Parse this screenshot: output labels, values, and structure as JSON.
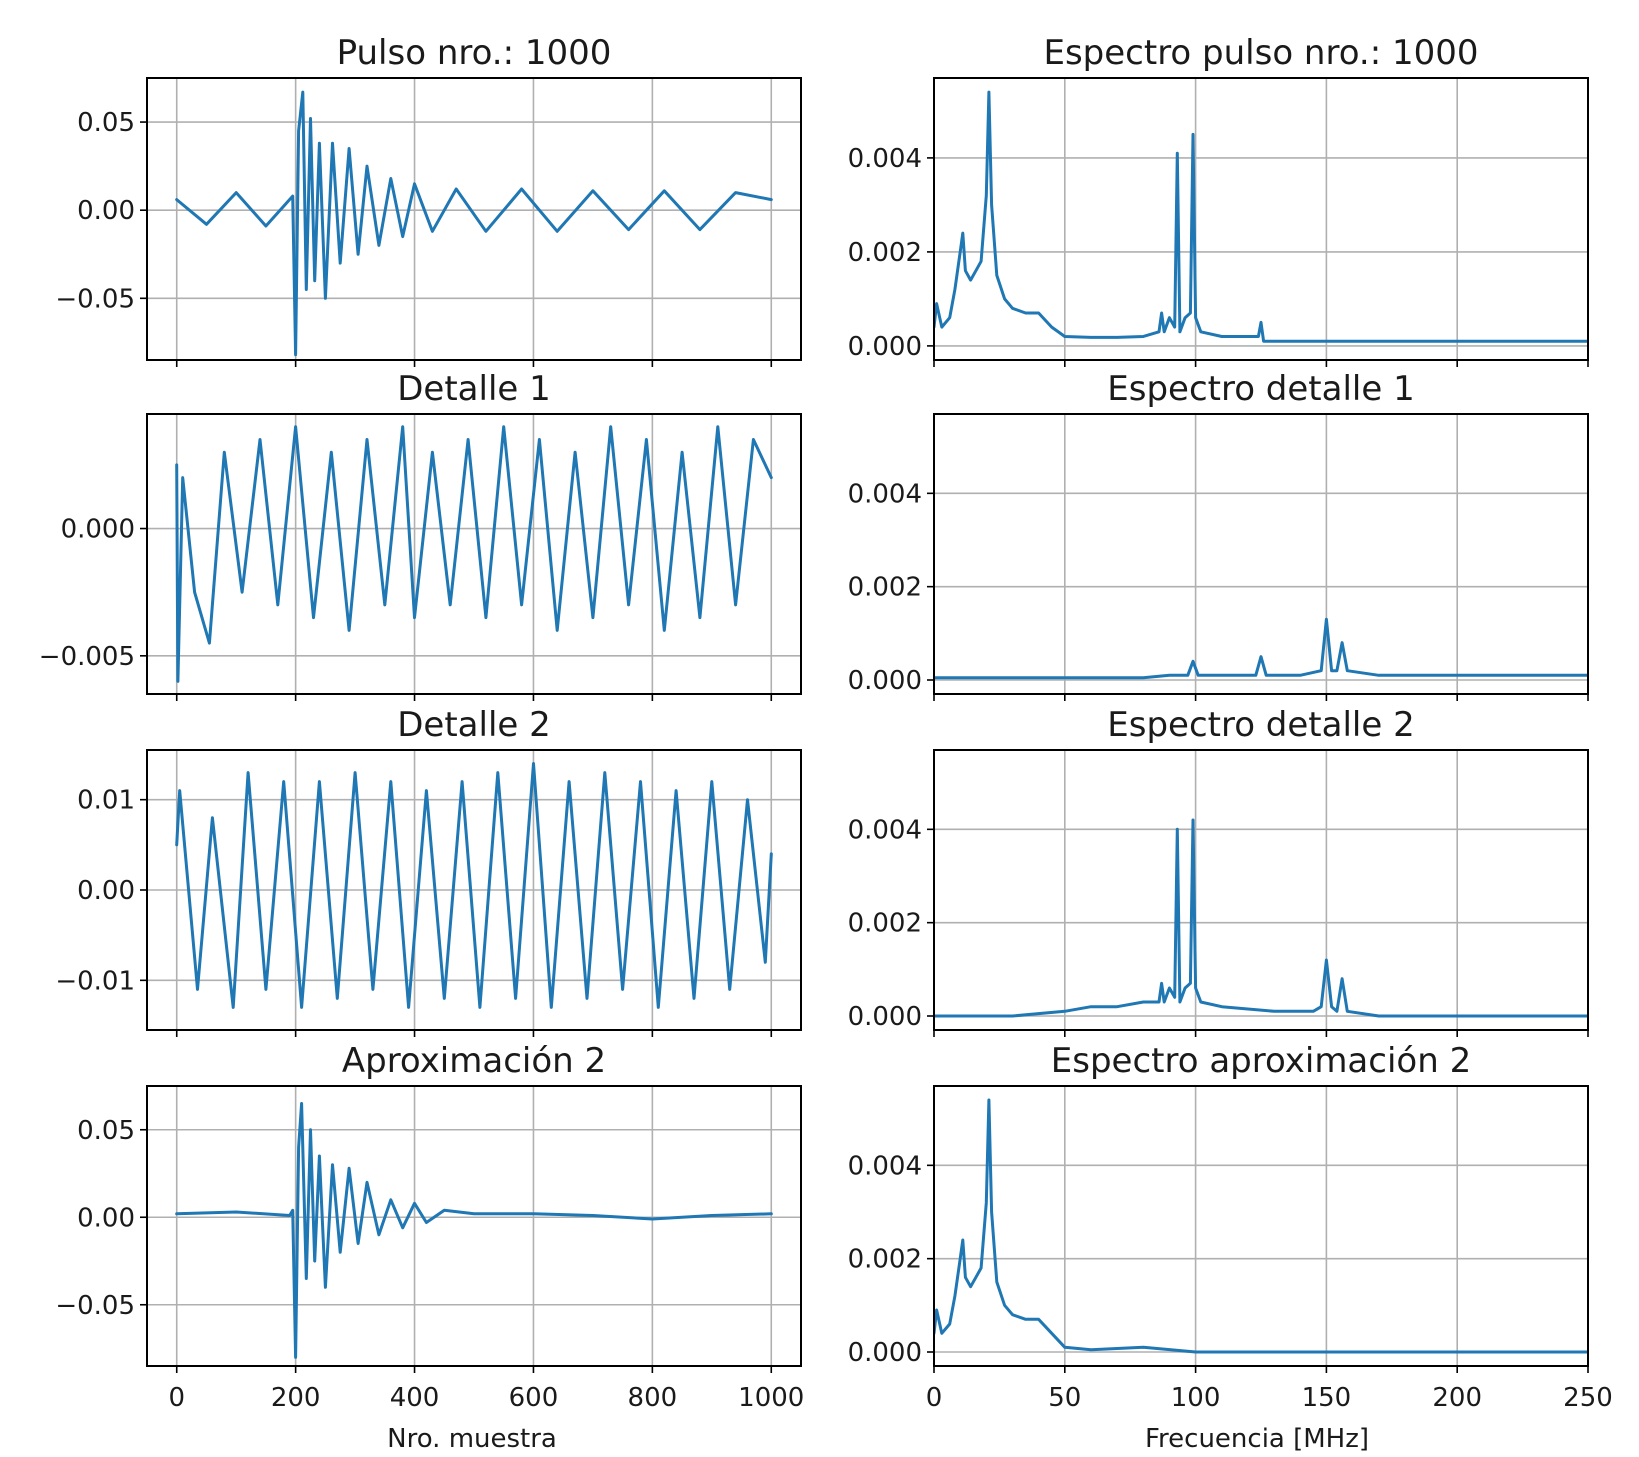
{
  "colors": {
    "series": "#1f77b4"
  },
  "x_labels": {
    "left": "Nro. muestra",
    "right": "Frecuencia [MHz]"
  },
  "chart_data": [
    {
      "type": "line",
      "title": "Pulso nro.: 1000",
      "column": "left",
      "xlim": [
        -50,
        1050
      ],
      "ylim": [
        -0.085,
        0.075
      ],
      "xticks": [
        0,
        200,
        400,
        600,
        800,
        1000
      ],
      "yticks": [
        -0.05,
        0.0,
        0.05
      ],
      "ytick_labels": [
        "−0.05",
        "0.00",
        "0.05"
      ],
      "series": [
        {
          "x": [
            0,
            50,
            100,
            150,
            195,
            200,
            205,
            212,
            218,
            225,
            232,
            240,
            250,
            262,
            275,
            290,
            305,
            320,
            340,
            360,
            380,
            400,
            430,
            470,
            520,
            580,
            640,
            700,
            760,
            820,
            880,
            940,
            1000
          ],
          "y": [
            0.006,
            -0.008,
            0.01,
            -0.009,
            0.008,
            -0.082,
            0.045,
            0.067,
            -0.045,
            0.052,
            -0.04,
            0.038,
            -0.05,
            0.038,
            -0.03,
            0.035,
            -0.025,
            0.025,
            -0.02,
            0.018,
            -0.015,
            0.015,
            -0.012,
            0.012,
            -0.012,
            0.012,
            -0.012,
            0.011,
            -0.011,
            0.011,
            -0.011,
            0.01,
            0.006
          ]
        }
      ]
    },
    {
      "type": "line",
      "title": "Espectro pulso nro.: 1000",
      "column": "right",
      "xlim": [
        0,
        250
      ],
      "ylim": [
        -0.0003,
        0.0057
      ],
      "xticks": [
        0,
        50,
        100,
        150,
        200,
        250
      ],
      "yticks": [
        0.0,
        0.002,
        0.004
      ],
      "ytick_labels": [
        "0.000",
        "0.002",
        "0.004"
      ],
      "series": [
        {
          "x": [
            0,
            1,
            3,
            6,
            8,
            10,
            11,
            12,
            14,
            16,
            18,
            20,
            21,
            22,
            24,
            27,
            30,
            35,
            40,
            45,
            50,
            60,
            70,
            80,
            86,
            87,
            88,
            90,
            92,
            93,
            94,
            96,
            98,
            99,
            100,
            102,
            110,
            124,
            125,
            126,
            140,
            160,
            200,
            250
          ],
          "y": [
            0.0004,
            0.0009,
            0.0004,
            0.0006,
            0.0012,
            0.002,
            0.0024,
            0.0016,
            0.0014,
            0.0016,
            0.0018,
            0.0032,
            0.0054,
            0.003,
            0.0015,
            0.001,
            0.0008,
            0.0007,
            0.0007,
            0.0004,
            0.0002,
            0.00018,
            0.00018,
            0.0002,
            0.0003,
            0.0007,
            0.0003,
            0.0006,
            0.0004,
            0.0041,
            0.0003,
            0.0006,
            0.0007,
            0.0045,
            0.0006,
            0.0003,
            0.0002,
            0.0002,
            0.0005,
            0.0001,
            0.0001,
            0.0001,
            0.0001,
            0.0001
          ]
        }
      ]
    },
    {
      "type": "line",
      "title": "Detalle 1",
      "column": "left",
      "xlim": [
        -50,
        1050
      ],
      "ylim": [
        -0.0065,
        0.0045
      ],
      "xticks": [
        0,
        200,
        400,
        600,
        800,
        1000
      ],
      "yticks": [
        -0.005,
        0.0
      ],
      "ytick_labels": [
        "−0.005",
        "0.000"
      ],
      "series": [
        {
          "x": [
            0,
            2,
            10,
            30,
            55,
            80,
            110,
            140,
            170,
            200,
            230,
            260,
            290,
            320,
            350,
            380,
            400,
            430,
            460,
            490,
            520,
            550,
            580,
            610,
            640,
            670,
            700,
            730,
            760,
            790,
            820,
            850,
            880,
            910,
            940,
            970,
            1000
          ],
          "y": [
            0.0025,
            -0.006,
            0.002,
            -0.0025,
            -0.0045,
            0.003,
            -0.0025,
            0.0035,
            -0.003,
            0.004,
            -0.0035,
            0.003,
            -0.004,
            0.0035,
            -0.003,
            0.004,
            -0.0035,
            0.003,
            -0.003,
            0.0035,
            -0.0035,
            0.004,
            -0.003,
            0.0035,
            -0.004,
            0.003,
            -0.0035,
            0.004,
            -0.003,
            0.0035,
            -0.004,
            0.003,
            -0.0035,
            0.004,
            -0.003,
            0.0035,
            0.002
          ]
        }
      ]
    },
    {
      "type": "line",
      "title": "Espectro detalle 1",
      "column": "right",
      "xlim": [
        0,
        250
      ],
      "ylim": [
        -0.0003,
        0.0057
      ],
      "xticks": [
        0,
        50,
        100,
        150,
        200,
        250
      ],
      "yticks": [
        0.0,
        0.002,
        0.004
      ],
      "ytick_labels": [
        "0.000",
        "0.002",
        "0.004"
      ],
      "series": [
        {
          "x": [
            0,
            80,
            90,
            97,
            99,
            101,
            110,
            123,
            125,
            127,
            140,
            148,
            150,
            152,
            154,
            156,
            158,
            170,
            200,
            250
          ],
          "y": [
            5e-05,
            5e-05,
            0.0001,
            0.0001,
            0.0004,
            0.0001,
            0.0001,
            0.0001,
            0.0005,
            0.0001,
            0.0001,
            0.0002,
            0.0013,
            0.0002,
            0.0002,
            0.0008,
            0.0002,
            0.0001,
            0.0001,
            0.0001
          ]
        }
      ]
    },
    {
      "type": "line",
      "title": "Detalle 2",
      "column": "left",
      "xlim": [
        -50,
        1050
      ],
      "ylim": [
        -0.0155,
        0.0155
      ],
      "xticks": [
        0,
        200,
        400,
        600,
        800,
        1000
      ],
      "yticks": [
        -0.01,
        0.0,
        0.01
      ],
      "ytick_labels": [
        "−0.01",
        "0.00",
        "0.01"
      ],
      "series": [
        {
          "x": [
            0,
            5,
            35,
            60,
            95,
            120,
            150,
            180,
            210,
            240,
            270,
            300,
            330,
            360,
            390,
            420,
            450,
            480,
            510,
            540,
            570,
            600,
            630,
            660,
            690,
            720,
            750,
            780,
            810,
            840,
            870,
            900,
            930,
            960,
            990,
            1000
          ],
          "y": [
            0.005,
            0.011,
            -0.011,
            0.008,
            -0.013,
            0.013,
            -0.011,
            0.012,
            -0.013,
            0.012,
            -0.012,
            0.013,
            -0.011,
            0.012,
            -0.013,
            0.011,
            -0.012,
            0.012,
            -0.013,
            0.013,
            -0.012,
            0.014,
            -0.013,
            0.012,
            -0.012,
            0.013,
            -0.011,
            0.012,
            -0.013,
            0.011,
            -0.012,
            0.012,
            -0.011,
            0.01,
            -0.008,
            0.004
          ]
        }
      ]
    },
    {
      "type": "line",
      "title": "Espectro detalle 2",
      "column": "right",
      "xlim": [
        0,
        250
      ],
      "ylim": [
        -0.0003,
        0.0057
      ],
      "xticks": [
        0,
        50,
        100,
        150,
        200,
        250
      ],
      "yticks": [
        0.0,
        0.002,
        0.004
      ],
      "ytick_labels": [
        "0.000",
        "0.002",
        "0.004"
      ],
      "series": [
        {
          "x": [
            0,
            30,
            50,
            60,
            70,
            80,
            86,
            87,
            88,
            90,
            92,
            93,
            94,
            96,
            98,
            99,
            100,
            102,
            110,
            130,
            145,
            148,
            150,
            152,
            154,
            156,
            158,
            170,
            200,
            250
          ],
          "y": [
            0.0,
            0.0,
            0.0001,
            0.0002,
            0.0002,
            0.0003,
            0.0003,
            0.0007,
            0.0003,
            0.0006,
            0.0004,
            0.004,
            0.0003,
            0.0006,
            0.0007,
            0.0042,
            0.0006,
            0.0003,
            0.0002,
            0.0001,
            0.0001,
            0.0002,
            0.0012,
            0.0002,
            0.0001,
            0.0008,
            0.0001,
            0.0,
            0.0,
            0.0
          ]
        }
      ]
    },
    {
      "type": "line",
      "title": "Aproximación 2",
      "column": "left",
      "xlim": [
        -50,
        1050
      ],
      "ylim": [
        -0.085,
        0.075
      ],
      "xticks": [
        0,
        200,
        400,
        600,
        800,
        1000
      ],
      "yticks": [
        -0.05,
        0.0,
        0.05
      ],
      "ytick_labels": [
        "−0.05",
        "0.00",
        "0.05"
      ],
      "series": [
        {
          "x": [
            0,
            100,
            190,
            195,
            200,
            205,
            210,
            218,
            225,
            232,
            240,
            250,
            262,
            275,
            290,
            305,
            320,
            340,
            360,
            380,
            400,
            420,
            450,
            500,
            600,
            700,
            800,
            900,
            1000
          ],
          "y": [
            0.002,
            0.003,
            0.001,
            0.004,
            -0.08,
            0.04,
            0.065,
            -0.035,
            0.05,
            -0.025,
            0.035,
            -0.04,
            0.03,
            -0.02,
            0.028,
            -0.015,
            0.02,
            -0.01,
            0.01,
            -0.006,
            0.008,
            -0.003,
            0.004,
            0.002,
            0.002,
            0.001,
            -0.001,
            0.001,
            0.002
          ]
        }
      ]
    },
    {
      "type": "line",
      "title": "Espectro aproximación 2",
      "column": "right",
      "xlim": [
        0,
        250
      ],
      "ylim": [
        -0.0003,
        0.0057
      ],
      "xticks": [
        0,
        50,
        100,
        150,
        200,
        250
      ],
      "yticks": [
        0.0,
        0.002,
        0.004
      ],
      "ytick_labels": [
        "0.000",
        "0.002",
        "0.004"
      ],
      "series": [
        {
          "x": [
            0,
            1,
            3,
            6,
            8,
            10,
            11,
            12,
            14,
            16,
            18,
            20,
            21,
            22,
            24,
            27,
            30,
            35,
            40,
            45,
            50,
            60,
            80,
            100,
            150,
            200,
            250
          ],
          "y": [
            0.0004,
            0.0009,
            0.0004,
            0.0006,
            0.0012,
            0.002,
            0.0024,
            0.0016,
            0.0014,
            0.0016,
            0.0018,
            0.0032,
            0.0054,
            0.003,
            0.0015,
            0.001,
            0.0008,
            0.0007,
            0.0007,
            0.0004,
            0.0001,
            5e-05,
            0.0001,
            0.0,
            0.0,
            0.0,
            0.0
          ]
        }
      ]
    }
  ]
}
